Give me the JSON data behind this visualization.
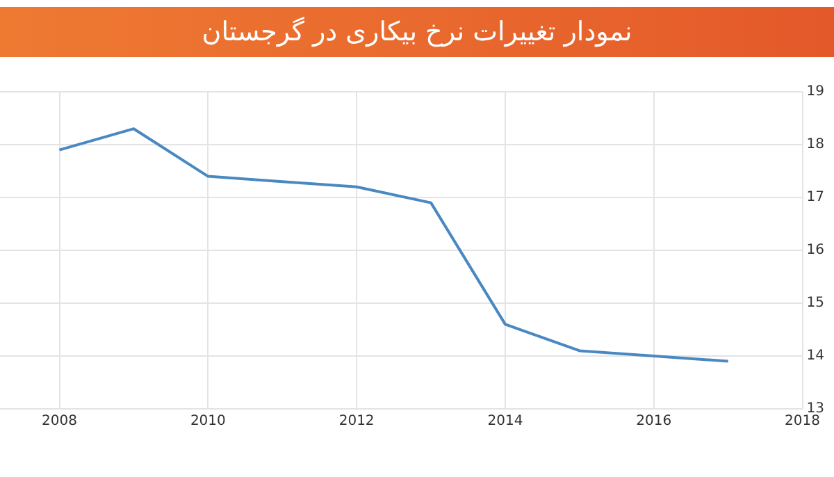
{
  "chart_data": {
    "type": "line",
    "title": "نمودار تغییرات نرخ بیکاری در گرجستان",
    "x": [
      2008,
      2009,
      2010,
      2011,
      2012,
      2013,
      2014,
      2015,
      2016,
      2017
    ],
    "series": [
      {
        "color": "#4a88c2",
        "values": [
          17.9,
          18.3,
          17.4,
          17.3,
          17.2,
          16.9,
          14.6,
          14.1,
          14.0,
          13.9
        ]
      }
    ],
    "xlim": [
      2007.2,
      2018
    ],
    "xticks": [
      2008,
      2010,
      2012,
      2014,
      2016,
      2018
    ],
    "ylim": [
      13,
      19
    ],
    "yticks": [
      13,
      14,
      15,
      16,
      17,
      18,
      19
    ],
    "grid": true,
    "legend": false,
    "marker": "none",
    "line_style": "solid"
  }
}
